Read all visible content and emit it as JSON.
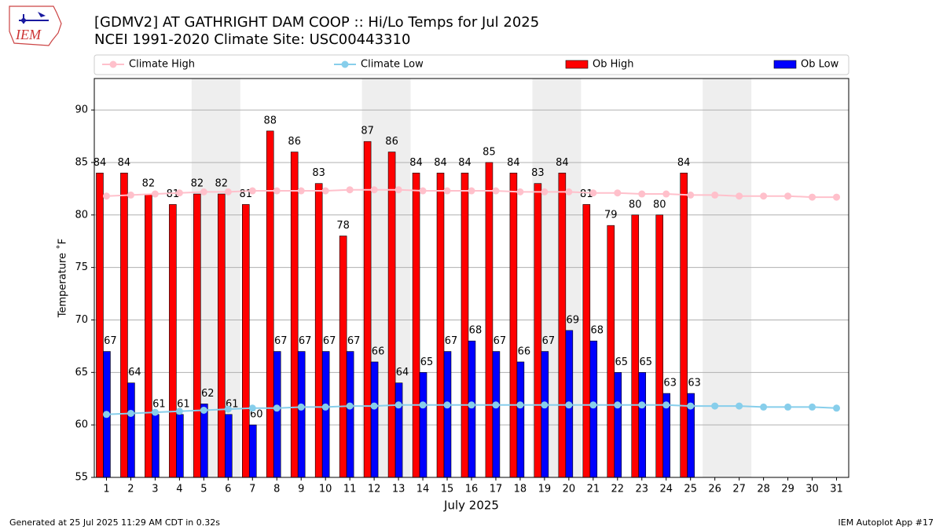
{
  "chart_data": {
    "type": "bar",
    "title": "[GDMV2] AT GATHRIGHT DAM COOP :: Hi/Lo Temps for Jul 2025",
    "subtitle": "NCEI 1991-2020 Climate Site: USC00443310",
    "xlabel": "July 2025",
    "ylabel": "Temperature ˚F",
    "footer_left": "Generated at 25 Jul 2025 11:29 AM CDT in 0.32s",
    "footer_right": "IEM Autoplot App #17",
    "logo_text": "IEM",
    "x": [
      1,
      2,
      3,
      4,
      5,
      6,
      7,
      8,
      9,
      10,
      11,
      12,
      13,
      14,
      15,
      16,
      17,
      18,
      19,
      20,
      21,
      22,
      23,
      24,
      25,
      26,
      27,
      28,
      29,
      30,
      31
    ],
    "xlim": [
      0.5,
      31.5
    ],
    "ylim": [
      55,
      93
    ],
    "yticks": [
      55,
      60,
      65,
      70,
      75,
      80,
      85,
      90
    ],
    "grid": true,
    "series": [
      {
        "name": "Climate High",
        "type": "line",
        "color": "#ffc0cb",
        "values": [
          81.8,
          81.9,
          82.0,
          82.1,
          82.2,
          82.2,
          82.3,
          82.3,
          82.3,
          82.3,
          82.4,
          82.4,
          82.4,
          82.3,
          82.3,
          82.3,
          82.3,
          82.2,
          82.2,
          82.2,
          82.1,
          82.1,
          82.0,
          82.0,
          81.9,
          81.9,
          81.8,
          81.8,
          81.8,
          81.7,
          81.7
        ]
      },
      {
        "name": "Climate Low",
        "type": "line",
        "color": "#87ceeb",
        "values": [
          61.0,
          61.1,
          61.2,
          61.3,
          61.4,
          61.5,
          61.6,
          61.6,
          61.7,
          61.7,
          61.8,
          61.8,
          61.9,
          61.9,
          61.9,
          61.9,
          61.9,
          61.9,
          61.9,
          61.9,
          61.9,
          61.9,
          61.9,
          61.9,
          61.8,
          61.8,
          61.8,
          61.7,
          61.7,
          61.7,
          61.6
        ]
      },
      {
        "name": "Ob High",
        "type": "bar",
        "color": "#ff0000",
        "values": [
          84,
          84,
          82,
          81,
          82,
          82,
          81,
          88,
          86,
          83,
          78,
          87,
          86,
          84,
          84,
          84,
          85,
          84,
          83,
          84,
          81,
          79,
          80,
          80,
          84,
          null,
          null,
          null,
          null,
          null,
          null
        ]
      },
      {
        "name": "Ob Low",
        "type": "bar",
        "color": "#0000ff",
        "values": [
          67,
          64,
          61,
          61,
          62,
          61,
          60,
          67,
          67,
          67,
          67,
          66,
          64,
          65,
          67,
          68,
          67,
          66,
          67,
          69,
          68,
          65,
          65,
          63,
          63,
          null,
          null,
          null,
          null,
          null,
          null
        ]
      }
    ]
  }
}
